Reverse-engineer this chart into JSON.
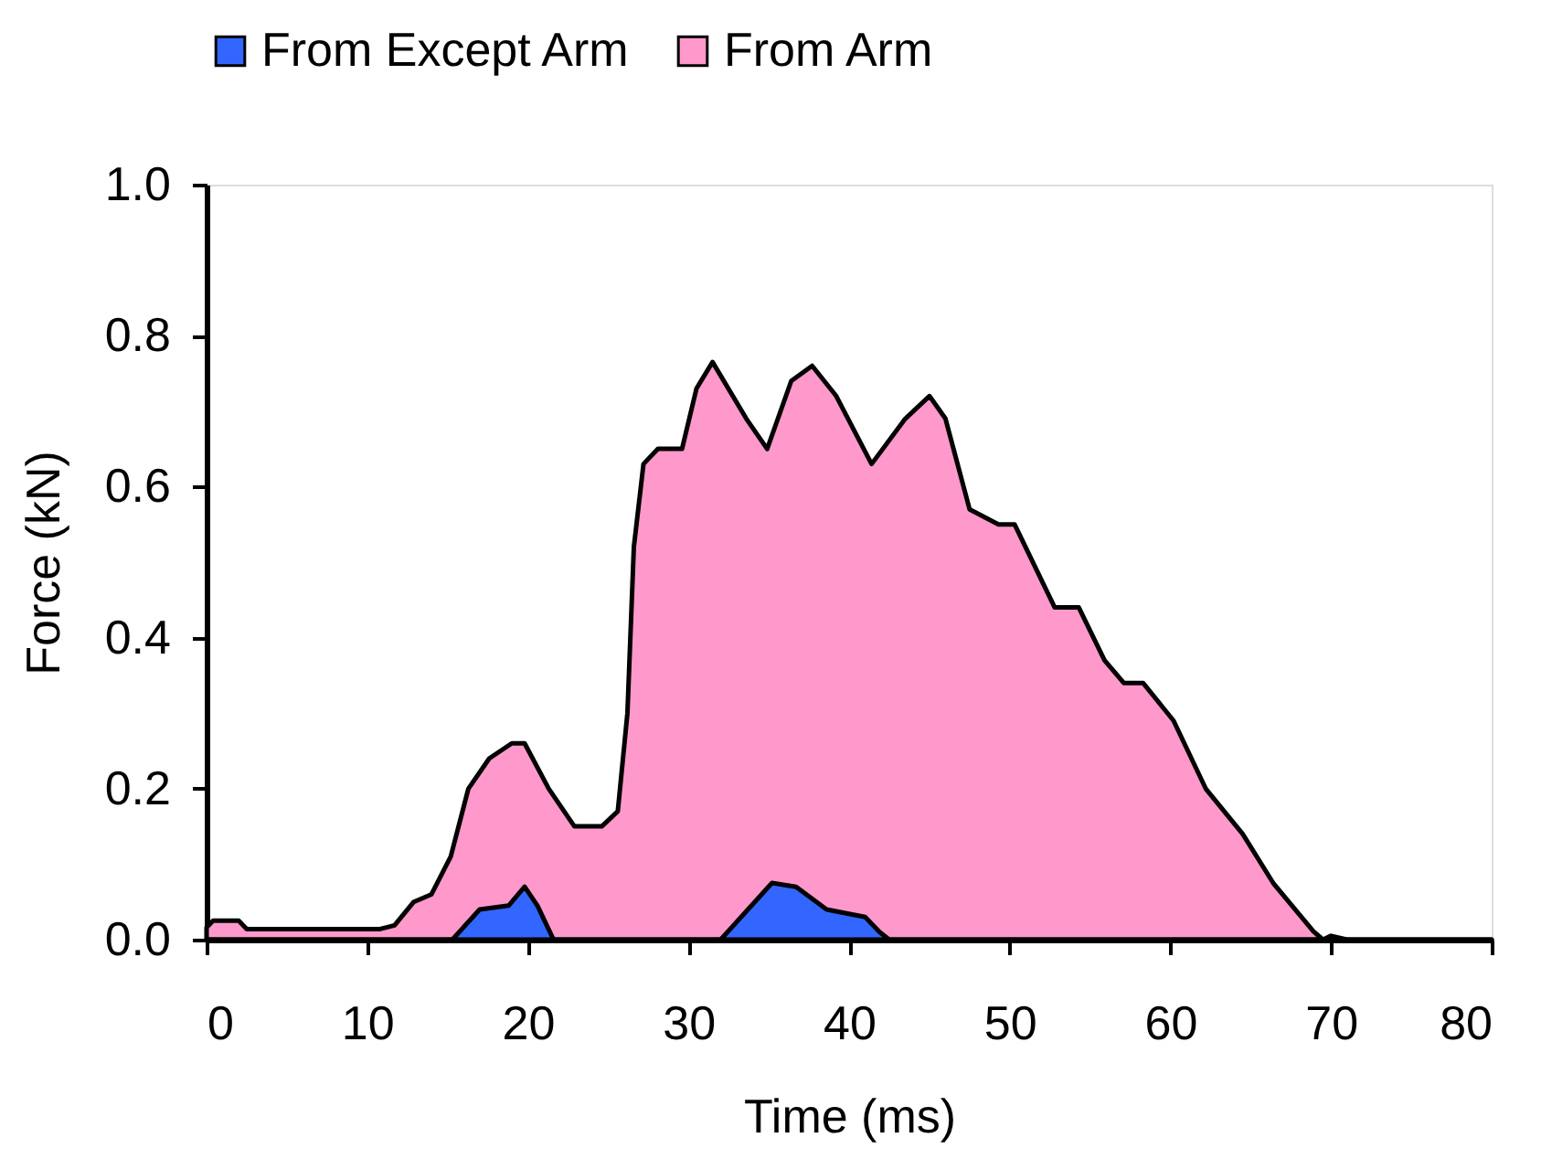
{
  "chart_data": {
    "type": "area",
    "xlabel": "Time (ms)",
    "ylabel": "Force (kN)",
    "xlim": [
      0,
      80
    ],
    "xticks": [
      0,
      10,
      20,
      30,
      40,
      50,
      60,
      70,
      80
    ],
    "ylim": [
      0,
      1.0
    ],
    "yticks": [
      {
        "value": 0,
        "label": "0.0"
      },
      0.2,
      0.4,
      0.6,
      0.8,
      {
        "value": 1,
        "label": "1.0"
      }
    ],
    "grid": false,
    "legend": "top",
    "series": [
      {
        "name": "From Except Arm",
        "color": "#3366ff",
        "x": [
          0,
          15.3,
          17,
          18.8,
          19.8,
          20.6,
          21.6,
          32,
          35.2,
          36.7,
          38.6,
          41,
          41.9,
          42.5,
          80
        ],
        "values": [
          0,
          0,
          0.04,
          0.045,
          0.07,
          0.045,
          0,
          0,
          0.075,
          0.07,
          0.04,
          0.03,
          0.01,
          0,
          0
        ]
      },
      {
        "name": "From Arm",
        "color": "#ff99cc",
        "x": [
          0,
          0.4,
          2,
          2.5,
          10.8,
          11.7,
          12.9,
          14,
          15.2,
          16.3,
          17.6,
          19,
          19.8,
          21.3,
          22.9,
          24.6,
          25.6,
          26.2,
          26.6,
          27.2,
          28.1,
          29.6,
          30.5,
          31.5,
          33.6,
          34.9,
          36.4,
          37.7,
          39.2,
          41.4,
          43.5,
          45,
          46,
          47.5,
          49.3,
          50.3,
          52.8,
          54.3,
          55.9,
          57.1,
          58.3,
          60.2,
          62.2,
          64.5,
          66.4,
          68.9,
          69.5,
          70,
          71,
          80
        ],
        "values": [
          0.016,
          0.025,
          0.025,
          0.014,
          0.014,
          0.019,
          0.05,
          0.06,
          0.11,
          0.2,
          0.24,
          0.26,
          0.26,
          0.2,
          0.15,
          0.15,
          0.17,
          0.3,
          0.52,
          0.63,
          0.65,
          0.65,
          0.73,
          0.765,
          0.69,
          0.65,
          0.74,
          0.76,
          0.72,
          0.63,
          0.69,
          0.72,
          0.69,
          0.57,
          0.55,
          0.55,
          0.44,
          0.44,
          0.37,
          0.34,
          0.34,
          0.29,
          0.2,
          0.14,
          0.075,
          0.011,
          0,
          0.005,
          0,
          0
        ]
      }
    ]
  }
}
